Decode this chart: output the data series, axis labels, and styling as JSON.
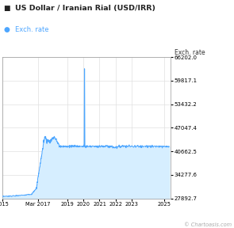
{
  "title": "US Dollar / Iranian Rial (USD/IRR)",
  "legend_label": "Exch. rate",
  "ylabel": "Exch. rate",
  "watermark": "© Chartoasis.com",
  "yticks": [
    27892.7,
    34277.6,
    40662.5,
    47047.4,
    53432.2,
    59817.1,
    66202.0
  ],
  "xtick_labels": [
    "2015",
    "Mar 2017",
    "2019",
    "2020",
    "2021",
    "2022",
    "2023",
    "2025"
  ],
  "xtick_positions": [
    2015.0,
    2017.2,
    2019.0,
    2020.0,
    2021.0,
    2022.0,
    2023.0,
    2025.0
  ],
  "line_color": "#4da6ff",
  "fill_color": "#d6eeff",
  "background_color": "#ffffff",
  "grid_color": "#e0e0e0",
  "x_start_year": 2015.0,
  "x_end_year": 2025.4,
  "y_min": 27892.7,
  "y_max": 66202.0
}
